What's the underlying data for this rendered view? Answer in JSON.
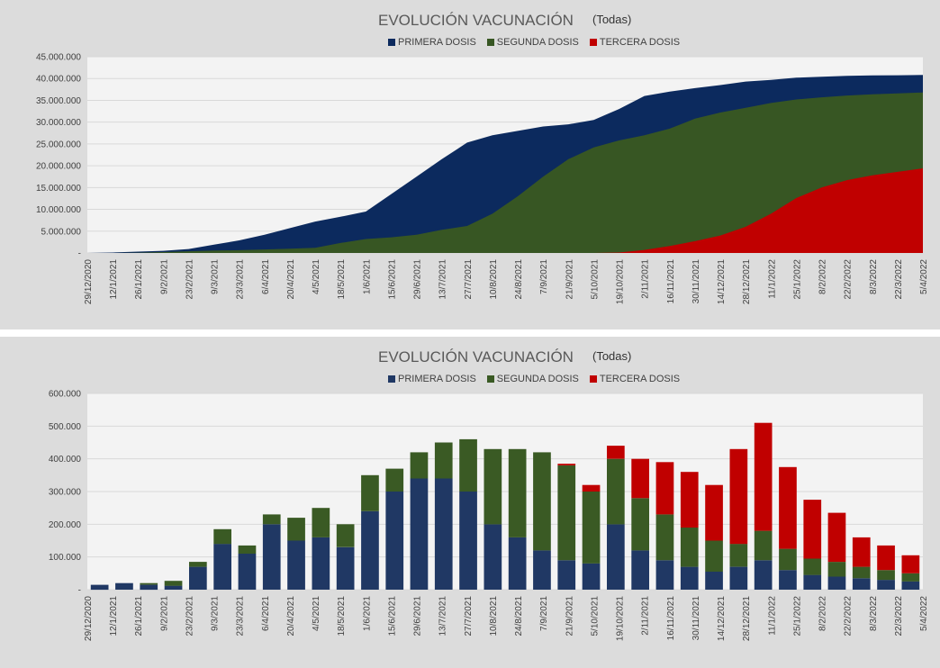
{
  "colors": {
    "primera_cum": "#0c2a5e",
    "segunda_cum": "#375623",
    "tercera_cum": "#c00000",
    "primera_daily": "#203864",
    "segunda_daily": "#3a5a24",
    "tercera_daily": "#c00000",
    "plot_bg": "#f3f3f3",
    "panel_bg": "#dcdcdc",
    "grid": "#d9d9d9"
  },
  "chart_data": [
    {
      "type": "area",
      "title": "EVOLUCIÓN VACUNACIÓN",
      "subtitle": "(Todas)",
      "legend_position": "top",
      "grid": true,
      "ylim": [
        0,
        45000000
      ],
      "yticks": [
        "45.000.000",
        "40.000.000",
        "35.000.000",
        "30.000.000",
        "25.000.000",
        "20.000.000",
        "15.000.000",
        "10.000.000",
        "5.000.000",
        "-"
      ],
      "x_tick_labels": [
        "29/12/2020",
        "12/1/2021",
        "26/1/2021",
        "9/2/2021",
        "23/2/2021",
        "9/3/2021",
        "23/3/2021",
        "6/4/2021",
        "20/4/2021",
        "4/5/2021",
        "18/5/2021",
        "1/6/2021",
        "15/6/2021",
        "29/6/2021",
        "13/7/2021",
        "27/7/2021",
        "10/8/2021",
        "24/8/2021",
        "7/9/2021",
        "21/9/2021",
        "5/10/2021",
        "19/10/2021",
        "2/11/2021",
        "16/11/2021",
        "30/11/2021",
        "14/12/2021",
        "28/12/2021",
        "11/1/2022",
        "25/1/2022",
        "8/2/2022",
        "22/2/2022",
        "8/3/2022",
        "22/3/2022",
        "5/4/2022"
      ],
      "series": [
        {
          "name": "PRIMERA DOSIS",
          "values": [
            0,
            100000,
            300000,
            500000,
            900000,
            1900000,
            2900000,
            4200000,
            5700000,
            7200000,
            8300000,
            9500000,
            13500000,
            17500000,
            21500000,
            25300000,
            27000000,
            28000000,
            29000000,
            29500000,
            30500000,
            33000000,
            36000000,
            37000000,
            37800000,
            38500000,
            39300000,
            39700000,
            40200000,
            40400000,
            40600000,
            40700000,
            40750000,
            40800000
          ]
        },
        {
          "name": "SEGUNDA DOSIS",
          "values": [
            0,
            0,
            50000,
            200000,
            400000,
            550000,
            650000,
            800000,
            1000000,
            1200000,
            2300000,
            3200000,
            3600000,
            4200000,
            5300000,
            6200000,
            9000000,
            13000000,
            17500000,
            21500000,
            24200000,
            25800000,
            27000000,
            28500000,
            30800000,
            32200000,
            33300000,
            34400000,
            35200000,
            35700000,
            36100000,
            36400000,
            36600000,
            36800000
          ]
        },
        {
          "name": "TERCERA DOSIS",
          "values": [
            0,
            0,
            0,
            0,
            0,
            0,
            0,
            0,
            0,
            0,
            0,
            0,
            0,
            0,
            0,
            0,
            0,
            0,
            0,
            0,
            0,
            100000,
            700000,
            1600000,
            2700000,
            4000000,
            6000000,
            9000000,
            12600000,
            15000000,
            16700000,
            17800000,
            18600000,
            19400000
          ]
        }
      ]
    },
    {
      "type": "bar",
      "stacked": true,
      "title": "EVOLUCIÓN VACUNACIÓN",
      "subtitle": "(Todas)",
      "legend_position": "top",
      "grid": true,
      "ylim": [
        0,
        600000
      ],
      "yticks": [
        "600.000",
        "500.000",
        "400.000",
        "300.000",
        "200.000",
        "100.000",
        "-"
      ],
      "x_tick_labels": [
        "29/12/2020",
        "12/1/2021",
        "26/1/2021",
        "9/2/2021",
        "23/2/2021",
        "9/3/2021",
        "23/3/2021",
        "6/4/2021",
        "20/4/2021",
        "4/5/2021",
        "18/5/2021",
        "1/6/2021",
        "15/6/2021",
        "29/6/2021",
        "13/7/2021",
        "27/7/2021",
        "10/8/2021",
        "24/8/2021",
        "7/9/2021",
        "21/9/2021",
        "5/10/2021",
        "19/10/2021",
        "2/11/2021",
        "16/11/2021",
        "30/11/2021",
        "14/12/2021",
        "28/12/2021",
        "11/1/2022",
        "25/1/2022",
        "8/2/2022",
        "22/2/2022",
        "8/3/2022",
        "22/3/2022",
        "5/4/2022"
      ],
      "series": [
        {
          "name": "PRIMERA DOSIS",
          "values": [
            15000,
            20000,
            15000,
            12000,
            70000,
            140000,
            110000,
            200000,
            150000,
            160000,
            130000,
            240000,
            300000,
            340000,
            340000,
            300000,
            200000,
            160000,
            120000,
            90000,
            80000,
            200000,
            120000,
            90000,
            70000,
            55000,
            70000,
            90000,
            60000,
            45000,
            40000,
            35000,
            30000,
            25000
          ]
        },
        {
          "name": "SEGUNDA DOSIS",
          "values": [
            0,
            0,
            5000,
            15000,
            15000,
            45000,
            25000,
            30000,
            70000,
            90000,
            70000,
            110000,
            70000,
            80000,
            110000,
            160000,
            230000,
            270000,
            300000,
            290000,
            220000,
            200000,
            160000,
            140000,
            120000,
            95000,
            70000,
            90000,
            65000,
            50000,
            45000,
            35000,
            30000,
            25000
          ]
        },
        {
          "name": "TERCERA DOSIS",
          "values": [
            0,
            0,
            0,
            0,
            0,
            0,
            0,
            0,
            0,
            0,
            0,
            0,
            0,
            0,
            0,
            0,
            0,
            0,
            0,
            5000,
            20000,
            40000,
            120000,
            160000,
            170000,
            170000,
            290000,
            330000,
            250000,
            180000,
            150000,
            90000,
            75000,
            55000
          ]
        }
      ]
    }
  ]
}
